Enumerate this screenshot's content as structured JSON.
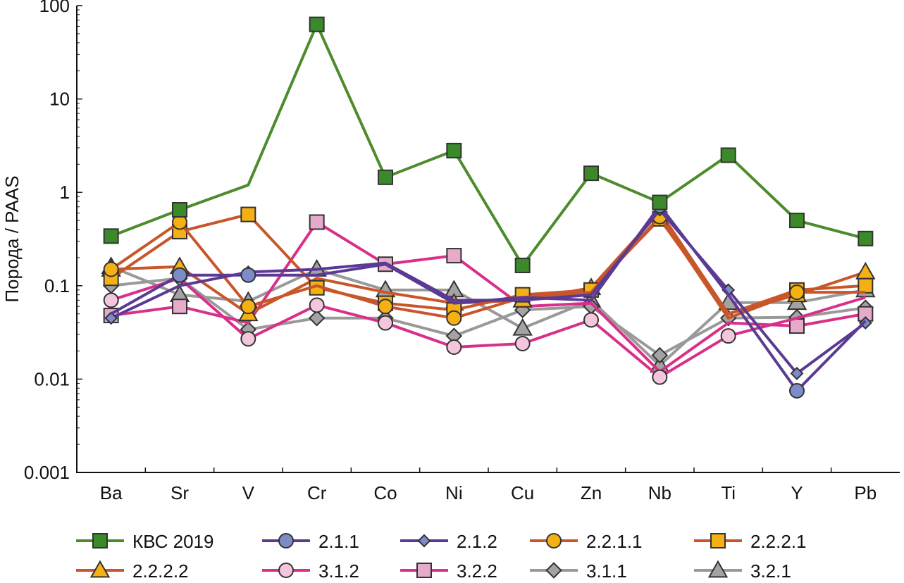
{
  "chart_data": {
    "type": "line",
    "title": "",
    "xlabel": "",
    "ylabel": "Порода / PAAS",
    "yscale": "log",
    "ylim": [
      0.001,
      100
    ],
    "y_ticks": [
      {
        "value": 100,
        "label": "100"
      },
      {
        "value": 10,
        "label": "10"
      },
      {
        "value": 1,
        "label": "1"
      },
      {
        "value": 0.1,
        "label": "0.1"
      },
      {
        "value": 0.01,
        "label": "0.01"
      },
      {
        "value": 0.001,
        "label": "0.001"
      }
    ],
    "categories": [
      "Ba",
      "Sr",
      "V",
      "Cr",
      "Co",
      "Ni",
      "Cu",
      "Zn",
      "Nb",
      "Ti",
      "Y",
      "Pb"
    ],
    "legend_position": "bottom",
    "grid": false,
    "series": [
      {
        "name": "КВС 2019",
        "color": "#4c8c2b",
        "fill": "#3a8a2a",
        "marker": "square",
        "values": [
          0.34,
          0.65,
          1.2,
          63,
          1.45,
          2.8,
          0.165,
          1.6,
          0.78,
          2.5,
          0.5,
          0.32
        ],
        "markers": [
          true,
          true,
          false,
          true,
          true,
          true,
          true,
          true,
          true,
          true,
          true,
          true
        ]
      },
      {
        "name": "2.1.1",
        "color": "#5b3a93",
        "fill": "#7d8cc8",
        "marker": "circle",
        "values": [
          0.05,
          0.13,
          0.13,
          0.13,
          0.17,
          0.065,
          0.075,
          0.07,
          0.72,
          0.08,
          0.0075,
          0.042
        ],
        "markers": [
          false,
          true,
          true,
          false,
          false,
          false,
          false,
          false,
          true,
          false,
          true,
          false
        ]
      },
      {
        "name": "2.1.2",
        "color": "#5b3a93",
        "fill": "#7d8cc8",
        "marker": "diamond",
        "values": [
          0.045,
          0.1,
          0.14,
          0.15,
          0.175,
          0.07,
          0.07,
          0.08,
          0.65,
          0.09,
          0.0115,
          0.04
        ],
        "markers": [
          true,
          false,
          true,
          false,
          false,
          false,
          false,
          false,
          true,
          true,
          true,
          true
        ]
      },
      {
        "name": "2.2.1.1",
        "color": "#c8562a",
        "fill": "#f5b014",
        "marker": "circle",
        "values": [
          0.15,
          0.48,
          0.06,
          0.1,
          0.06,
          0.045,
          0.075,
          0.085,
          0.55,
          0.045,
          0.085,
          0.085
        ],
        "markers": [
          true,
          true,
          true,
          false,
          true,
          true,
          false,
          false,
          true,
          false,
          true,
          false
        ]
      },
      {
        "name": "2.2.2.1",
        "color": "#c8562a",
        "fill": "#f5b014",
        "marker": "square",
        "values": [
          0.12,
          0.38,
          0.58,
          0.095,
          0.065,
          0.055,
          0.08,
          0.09,
          0.52,
          0.05,
          0.09,
          0.1
        ],
        "markers": [
          true,
          true,
          true,
          true,
          true,
          true,
          true,
          true,
          true,
          false,
          true,
          true
        ]
      },
      {
        "name": "2.2.2.2",
        "color": "#c8562a",
        "fill": "#f5b014",
        "marker": "triangle",
        "values": [
          0.15,
          0.16,
          0.05,
          0.12,
          0.085,
          0.065,
          0.07,
          0.095,
          0.62,
          0.05,
          0.08,
          0.14
        ],
        "markers": [
          true,
          true,
          true,
          false,
          false,
          true,
          true,
          true,
          true,
          false,
          true,
          true
        ]
      },
      {
        "name": "3.1.2",
        "color": "#d8308a",
        "fill": "#f4c6dd",
        "marker": "circle",
        "values": [
          0.07,
          0.12,
          0.027,
          0.062,
          0.04,
          0.022,
          0.024,
          0.043,
          0.0105,
          0.029,
          0.045,
          0.075
        ],
        "markers": [
          true,
          false,
          true,
          true,
          true,
          true,
          true,
          true,
          true,
          true,
          false,
          false
        ]
      },
      {
        "name": "3.2.2",
        "color": "#d8308a",
        "fill": "#e6aacb",
        "marker": "square",
        "values": [
          0.048,
          0.06,
          0.04,
          0.48,
          0.17,
          0.21,
          0.06,
          0.065,
          0.012,
          0.04,
          0.037,
          0.05
        ],
        "markers": [
          true,
          true,
          false,
          true,
          true,
          true,
          false,
          false,
          false,
          false,
          true,
          true
        ]
      },
      {
        "name": "3.1.1",
        "color": "#999999",
        "fill": "#a3a3a3",
        "marker": "diamond",
        "values": [
          0.1,
          0.12,
          0.034,
          0.045,
          0.045,
          0.029,
          0.055,
          0.06,
          0.018,
          0.045,
          0.046,
          0.058
        ],
        "markers": [
          true,
          true,
          true,
          true,
          true,
          true,
          true,
          true,
          true,
          true,
          true,
          true
        ]
      },
      {
        "name": "3.2.1",
        "color": "#999999",
        "fill": "#a3a3a3",
        "marker": "triangle",
        "values": [
          0.16,
          0.08,
          0.068,
          0.15,
          0.09,
          0.09,
          0.035,
          0.07,
          0.014,
          0.066,
          0.066,
          0.09
        ],
        "markers": [
          true,
          true,
          true,
          true,
          true,
          true,
          true,
          true,
          true,
          true,
          true,
          true
        ]
      }
    ]
  }
}
